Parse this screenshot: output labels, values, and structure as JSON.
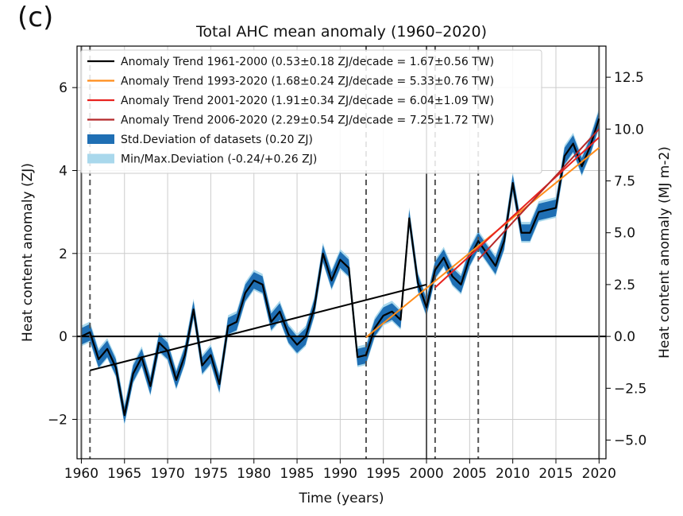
{
  "panel_label": "(c)",
  "chart_data": {
    "type": "line",
    "title": "Total AHC mean anomaly (1960–2020)",
    "xlabel": "Time (years)",
    "ylabel": "Heat content anomaly (ZJ)",
    "ylabel_right": "Heat content anomaly (MJ m-2)",
    "xlim": [
      1959.5,
      2020.8
    ],
    "ylim": [
      -2.95,
      7.0
    ],
    "ylim_right": [
      -5.9,
      14.0
    ],
    "xticks": [
      1960,
      1965,
      1970,
      1975,
      1980,
      1985,
      1990,
      1995,
      2000,
      2005,
      2010,
      2015,
      2020
    ],
    "xtick_labels": [
      "1960",
      "1965",
      "1970",
      "1975",
      "1980",
      "1985",
      "1990",
      "1995",
      "2000",
      "2005",
      "2010",
      "2015",
      "2020"
    ],
    "yticks": [
      -2,
      0,
      2,
      4,
      6
    ],
    "ytick_labels": [
      "−2",
      "0",
      "2",
      "4",
      "6"
    ],
    "yticks_right": [
      -5.0,
      -2.5,
      0.0,
      2.5,
      5.0,
      7.5,
      10.0,
      12.5
    ],
    "ytick_labels_right": [
      "−5.0",
      "−2.5",
      "0.0",
      "2.5",
      "5.0",
      "7.5",
      "10.0",
      "12.5"
    ],
    "grid": true,
    "vlines_solid": [
      1960,
      2000,
      2020
    ],
    "vlines_dashed": [
      1961,
      1993,
      2001,
      2006
    ],
    "hline": 0,
    "years": [
      1960,
      1961,
      1962,
      1963,
      1964,
      1965,
      1966,
      1967,
      1968,
      1969,
      1970,
      1971,
      1972,
      1973,
      1974,
      1975,
      1976,
      1977,
      1978,
      1979,
      1980,
      1981,
      1982,
      1983,
      1984,
      1985,
      1986,
      1987,
      1988,
      1989,
      1990,
      1991,
      1992,
      1993,
      1994,
      1995,
      1996,
      1997,
      1998,
      1999,
      2000,
      2001,
      2002,
      2003,
      2004,
      2005,
      2006,
      2007,
      2008,
      2009,
      2010,
      2011,
      2012,
      2013,
      2014,
      2015,
      2016,
      2017,
      2018,
      2019,
      2020
    ],
    "mean": [
      0.0,
      0.1,
      -0.55,
      -0.3,
      -0.75,
      -1.9,
      -0.9,
      -0.5,
      -1.2,
      -0.15,
      -0.35,
      -1.05,
      -0.45,
      0.65,
      -0.7,
      -0.45,
      -1.15,
      0.25,
      0.35,
      1.05,
      1.35,
      1.25,
      0.35,
      0.6,
      0.05,
      -0.2,
      0.0,
      0.7,
      2.0,
      1.35,
      1.85,
      1.65,
      -0.5,
      -0.45,
      0.2,
      0.5,
      0.6,
      0.4,
      2.85,
      1.3,
      0.7,
      1.6,
      1.9,
      1.45,
      1.25,
      1.9,
      2.3,
      2.0,
      1.7,
      2.3,
      3.7,
      2.5,
      2.5,
      3.0,
      3.05,
      3.1,
      4.35,
      4.65,
      4.1,
      4.6,
      5.25
    ],
    "std_deviation": 0.2,
    "minmax_deviation": [
      -0.24,
      0.26
    ],
    "trends": [
      {
        "label": "Anomaly Trend 1961-2000 (0.53±0.18 ZJ/decade = 1.67±0.56 TW)",
        "color": "#000000",
        "x": [
          1961,
          2000
        ],
        "y": [
          -0.82,
          1.25
        ]
      },
      {
        "label": "Anomaly Trend 1993-2020 (1.68±0.24 ZJ/decade = 5.33±0.76 TW)",
        "color": "#ff8c1a",
        "x": [
          1993,
          2020
        ],
        "y": [
          -0.02,
          4.55
        ]
      },
      {
        "label": "Anomaly Trend 2001-2020 (1.91±0.34 ZJ/decade = 6.04±1.09 TW)",
        "color": "#e8231f",
        "x": [
          2001,
          2020
        ],
        "y": [
          1.18,
          4.8
        ]
      },
      {
        "label": "Anomaly Trend 2006-2020 (2.29±0.54 ZJ/decade = 7.25±1.72 TW)",
        "color": "#b5282a",
        "x": [
          2006,
          2020
        ],
        "y": [
          1.85,
          5.0
        ]
      }
    ],
    "legend": [
      {
        "label": "Anomaly Trend 1961-2000 (0.53±0.18 ZJ/decade = 1.67±0.56 TW)",
        "kind": "line",
        "color": "#000000"
      },
      {
        "label": "Anomaly Trend 1993-2020 (1.68±0.24 ZJ/decade = 5.33±0.76 TW)",
        "kind": "line",
        "color": "#ff8c1a"
      },
      {
        "label": "Anomaly Trend 2001-2020 (1.91±0.34 ZJ/decade = 6.04±1.09 TW)",
        "kind": "line",
        "color": "#e8231f"
      },
      {
        "label": "Anomaly Trend 2006-2020 (2.29±0.54 ZJ/decade = 7.25±1.72 TW)",
        "kind": "line",
        "color": "#b5282a"
      },
      {
        "label": "Std.Deviation of datasets (0.20 ZJ)",
        "kind": "patch",
        "color": "#1f6fb4"
      },
      {
        "label": "Min/Max.Deviation (-0.24/+0.26 ZJ)",
        "kind": "patch",
        "color": "#a9d8ec"
      }
    ],
    "legend_position": "upper-left",
    "colors": {
      "mean": "#000000",
      "std_band": "#1f6fb4",
      "minmax_band": "#a9d8ec",
      "grid": "#cccccc"
    }
  }
}
